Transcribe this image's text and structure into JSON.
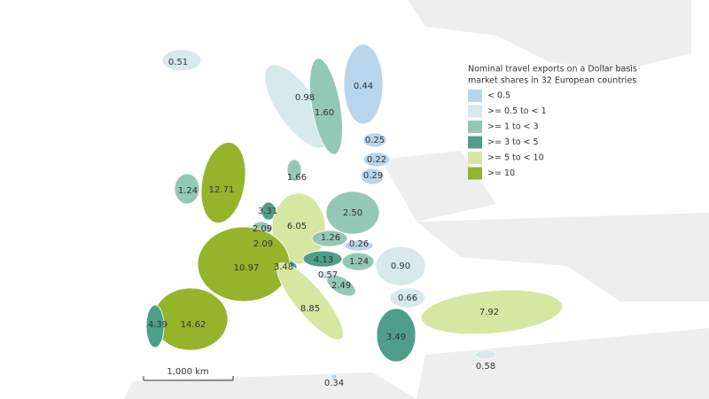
{
  "legend": {
    "title_lines": [
      "Nominal travel exports on a Dollar basis",
      "market shares in 32 European countries"
    ],
    "items": [
      {
        "label": "< 0.5",
        "color": "#b9d5ec"
      },
      {
        "label": ">= 0.5 to < 1",
        "color": "#d6e9ec"
      },
      {
        "label": ">= 1 to < 3",
        "color": "#93c7b6"
      },
      {
        "label": ">= 3 to < 5",
        "color": "#4f9e89"
      },
      {
        "label": ">= 5 to < 10",
        "color": "#d5e7a1"
      },
      {
        "label": ">= 10",
        "color": "#93b42b"
      }
    ]
  },
  "scale_bar": {
    "label": "1,000 km"
  },
  "regions": [
    {
      "label": "0.51",
      "color": "#d6e9ec"
    },
    {
      "label": "0.98",
      "color": "#d6e9ec"
    },
    {
      "label": "1.60",
      "color": "#93c7b6"
    },
    {
      "label": "0.44",
      "color": "#b9d5ec"
    },
    {
      "label": "0.25",
      "color": "#b9d5ec"
    },
    {
      "label": "0.22",
      "color": "#b9d5ec"
    },
    {
      "label": "0.29",
      "color": "#b9d5ec"
    },
    {
      "label": "1.66",
      "color": "#93c7b6"
    },
    {
      "label": "1.24",
      "color": "#93c7b6"
    },
    {
      "label": "12.71",
      "color": "#93b42b"
    },
    {
      "label": "3.31",
      "color": "#4f9e89"
    },
    {
      "label": "2.09",
      "color": "#93c7b6"
    },
    {
      "label": "2.09",
      "color": "#93c7b6"
    },
    {
      "label": "6.05",
      "color": "#d5e7a1"
    },
    {
      "label": "2.50",
      "color": "#93c7b6"
    },
    {
      "label": "1.26",
      "color": "#93c7b6"
    },
    {
      "label": "0.26",
      "color": "#b9d5ec"
    },
    {
      "label": "1.24",
      "color": "#93c7b6"
    },
    {
      "label": "4.13",
      "color": "#4f9e89"
    },
    {
      "label": "3.48",
      "color": "#4f9e89"
    },
    {
      "label": "10.97",
      "color": "#93b42b"
    },
    {
      "label": "0.57",
      "color": "#d6e9ec"
    },
    {
      "label": "2.49",
      "color": "#93c7b6"
    },
    {
      "label": "0.90",
      "color": "#d6e9ec"
    },
    {
      "label": "0.66",
      "color": "#d6e9ec"
    },
    {
      "label": "7.92",
      "color": "#d5e7a1"
    },
    {
      "label": "3.49",
      "color": "#4f9e89"
    },
    {
      "label": "0.58",
      "color": "#d6e9ec"
    },
    {
      "label": "14.62",
      "color": "#93b42b"
    },
    {
      "label": "4.39",
      "color": "#4f9e89"
    },
    {
      "label": "8.85",
      "color": "#d5e7a1"
    },
    {
      "label": "0.34",
      "color": "#b9d5ec"
    }
  ]
}
